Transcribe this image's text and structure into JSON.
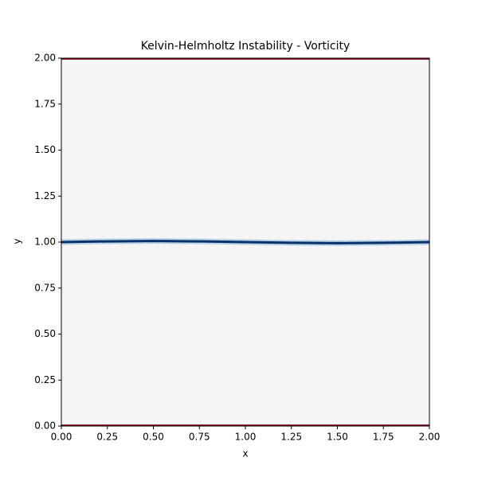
{
  "chart_data": {
    "type": "heatmap",
    "title": "Kelvin-Helmholtz Instability - Vorticity",
    "xlabel": "x",
    "ylabel": "y",
    "xlim": [
      0,
      2
    ],
    "ylim": [
      0,
      2
    ],
    "xticks": [
      {
        "value": 0,
        "label": "0.00"
      },
      {
        "value": 0.25,
        "label": "0.25"
      },
      {
        "value": 0.5,
        "label": "0.50"
      },
      {
        "value": 0.75,
        "label": "0.75"
      },
      {
        "value": 1,
        "label": "1.00"
      },
      {
        "value": 1.25,
        "label": "1.25"
      },
      {
        "value": 1.5,
        "label": "1.50"
      },
      {
        "value": 1.75,
        "label": "1.75"
      },
      {
        "value": 2,
        "label": "2.00"
      }
    ],
    "yticks": [
      {
        "value": 0,
        "label": "0.00"
      },
      {
        "value": 0.25,
        "label": "0.25"
      },
      {
        "value": 0.5,
        "label": "0.50"
      },
      {
        "value": 0.75,
        "label": "0.75"
      },
      {
        "value": 1,
        "label": "1.00"
      },
      {
        "value": 1.25,
        "label": "1.25"
      },
      {
        "value": 1.5,
        "label": "1.50"
      },
      {
        "value": 1.75,
        "label": "1.75"
      },
      {
        "value": 2,
        "label": "2.00"
      }
    ],
    "background_color": "#f5f5f5",
    "series": [
      {
        "color": "#08306b",
        "x": [
          0,
          0.25,
          0.5,
          0.75,
          1,
          1.25,
          1.5,
          1.75,
          2
        ],
        "values": [
          1.0,
          1.004,
          1.006,
          1.004,
          1.0,
          0.996,
          0.994,
          0.996,
          1.0
        ]
      }
    ]
  }
}
